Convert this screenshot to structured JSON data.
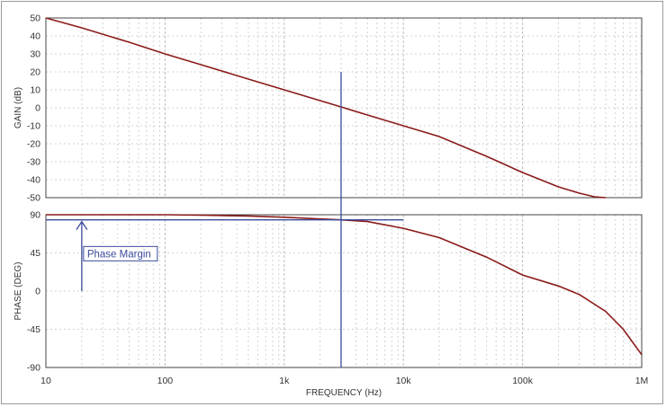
{
  "chart_data": [
    {
      "type": "line",
      "title": "",
      "xlabel": "FREQUENCY (Hz)",
      "ylabel": "GAIN (dB)",
      "xscale": "log",
      "xlim": [
        10,
        1000000
      ],
      "ylim": [
        -50,
        50
      ],
      "yticks": [
        "50",
        "40",
        "30",
        "20",
        "10",
        "0",
        "-10",
        "-20",
        "-30",
        "-40",
        "-50"
      ],
      "grid": true,
      "series": [
        {
          "color": "#8b1a1a",
          "x": [
            10,
            20,
            50,
            100,
            200,
            500,
            1000,
            2000,
            3000,
            5000,
            10000,
            20000,
            50000,
            100000,
            200000,
            300000,
            400000,
            500000
          ],
          "y": [
            50,
            44.5,
            36.5,
            30,
            24,
            16,
            10,
            4,
            0.5,
            -4,
            -10,
            -16,
            -27,
            -36,
            -44,
            -47.5,
            -49.5,
            -50
          ]
        }
      ]
    },
    {
      "type": "line",
      "title": "",
      "xlabel": "FREQUENCY (Hz)",
      "ylabel": "PHASE (DEG)",
      "xscale": "log",
      "xlim": [
        10,
        1000000
      ],
      "ylim": [
        -90,
        90
      ],
      "yticks": [
        "90",
        "45",
        "0",
        "-45",
        "-90"
      ],
      "grid": true,
      "series": [
        {
          "color": "#8b1a1a",
          "x": [
            10,
            100,
            200,
            500,
            1000,
            2000,
            3000,
            5000,
            10000,
            20000,
            50000,
            100000,
            200000,
            300000,
            500000,
            700000,
            1000000
          ],
          "y": [
            90,
            90,
            89.5,
            88.5,
            87,
            85,
            84,
            82,
            74,
            63,
            40,
            19,
            6,
            -4,
            -24,
            -45,
            -75
          ]
        }
      ],
      "annotation": {
        "label": "Phase Margin",
        "color": "#3a4a9a",
        "crossover_freq": 3000,
        "margin_deg": 84,
        "arrow_freq": 20
      }
    }
  ],
  "xticks": [
    {
      "value": 10,
      "label": "10"
    },
    {
      "value": 100,
      "label": "100"
    },
    {
      "value": 1000,
      "label": "1k"
    },
    {
      "value": 10000,
      "label": "10k"
    },
    {
      "value": 100000,
      "label": "100k"
    },
    {
      "value": 1000000,
      "label": "1M"
    }
  ]
}
